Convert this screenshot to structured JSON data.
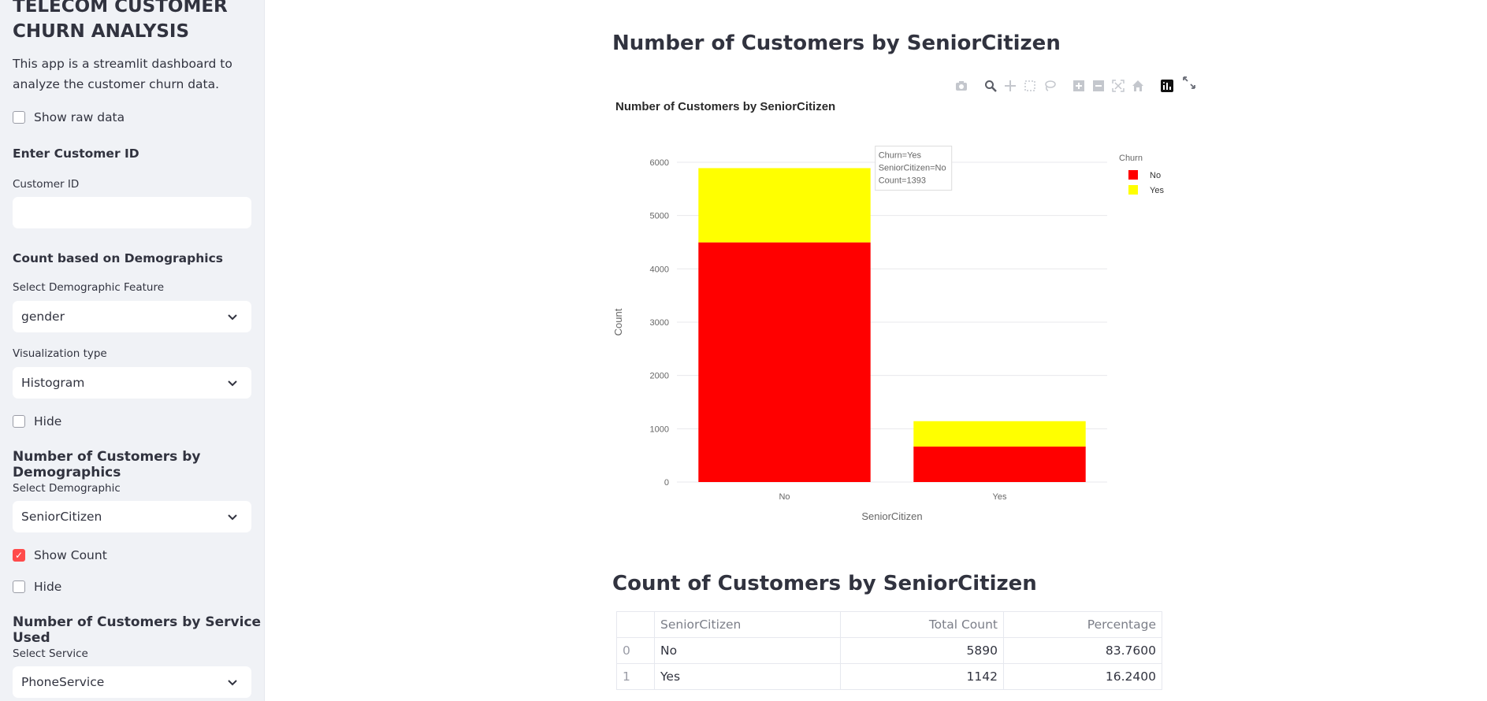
{
  "sidebar": {
    "title": "TELECOM CUSTOMER CHURN ANALYSIS",
    "description": "This app is a streamlit dashboard to analyze the customer churn data.",
    "show_raw_data": "Show raw data",
    "enter_customer_id": "Enter Customer ID",
    "customer_id_label": "Customer ID",
    "customer_id_value": "",
    "count_demographics": "Count based on Demographics",
    "select_demographic_feature": "Select Demographic Feature",
    "demographic_feature_value": "gender",
    "visualization_type": "Visualization type",
    "visualization_value": "Histogram",
    "hide_1": "Hide",
    "num_customers_demographics": "Number of Customers by Demographics",
    "select_demographic": "Select Demographic",
    "demographic_value": "SeniorCitizen",
    "show_count": "Show Count",
    "hide_2": "Hide",
    "num_customers_service": "Number of Customers by Service Used",
    "select_service": "Select Service",
    "service_value": "PhoneService"
  },
  "main": {
    "heading": "Number of Customers by SeniorCitizen",
    "count_heading": "Count of Customers by SeniorCitizen"
  },
  "modebar_icons": [
    "camera-icon",
    "zoom-icon",
    "pan-icon",
    "box-select-icon",
    "lasso-icon",
    "zoom-in-icon",
    "zoom-out-icon",
    "autoscale-icon",
    "reset-axes-icon",
    "plotly-logo-icon"
  ],
  "chart_data": {
    "type": "bar",
    "title": "Number of Customers by SeniorCitizen",
    "xlabel": "SeniorCitizen",
    "ylabel": "Count",
    "categories": [
      "No",
      "Yes"
    ],
    "series": [
      {
        "name": "No",
        "color": "#ff0000",
        "values": [
          4497,
          666
        ]
      },
      {
        "name": "Yes",
        "color": "#ffff00",
        "values": [
          1393,
          476
        ]
      }
    ],
    "ylim": [
      0,
      6000
    ],
    "yticks": [
      0,
      1000,
      2000,
      3000,
      4000,
      5000,
      6000
    ],
    "legend_title": "Churn",
    "legend_position": "top-right",
    "tooltip": [
      "Churn=Yes",
      "SeniorCitizen=No",
      "Count=1393"
    ],
    "grid": true
  },
  "table": {
    "headers": [
      "",
      "SeniorCitizen",
      "Total Count",
      "Percentage"
    ],
    "rows": [
      [
        "0",
        "No",
        "5890",
        "83.7600"
      ],
      [
        "1",
        "Yes",
        "1142",
        "16.2400"
      ]
    ]
  }
}
